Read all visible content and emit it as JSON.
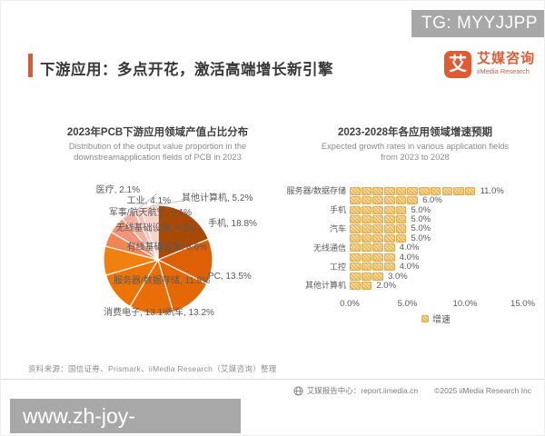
{
  "watermarks": {
    "top": "TG: MYYJJPP",
    "bottom": "www.zh-joy-bandao.com"
  },
  "header": {
    "title": "下游应用：多点开花，激活高端增长新引擎"
  },
  "logo": {
    "glyph": "艾",
    "name_cn": "艾媒咨询",
    "name_en": "iiMedia Research"
  },
  "colors": {
    "accent": "#E4572E",
    "watermark_gray": "#A8A8A8",
    "bar_square_base": "#F4CE7F",
    "bar_square_line": "#DFA64A",
    "label_text": "#595959"
  },
  "chart_data": [
    {
      "type": "pie",
      "title": "2023年PCB下游应用领域产值占比分布",
      "subtitle_lines": [
        "Distribution of the output value proportion in the",
        "downstreamapplication fields of PCB in 2023"
      ],
      "unit": "%",
      "direction": "clockwise",
      "start_angle_deg": 0,
      "slices": [
        {
          "label": "手机",
          "value": 18.8,
          "color": "#A84A06"
        },
        {
          "label": "PC",
          "value": 13.5,
          "color": "#DD6005"
        },
        {
          "label": "汽车",
          "value": 13.2,
          "color": "#E46906"
        },
        {
          "label": "消费电子",
          "value": 13.1,
          "color": "#E96E05"
        },
        {
          "label": "服务器/数据存储",
          "value": 11.8,
          "color": "#EC7404"
        },
        {
          "label": "有线基础设施",
          "value": 8.6,
          "color": "#F0800F"
        },
        {
          "label": "无线基础设施",
          "value": 4.5,
          "color": "#EF8654"
        },
        {
          "label": "军事/航天航空",
          "value": 5.1,
          "color": "#F0957A"
        },
        {
          "label": "工业",
          "value": 4.1,
          "color": "#F4B0A1"
        },
        {
          "label": "医疗",
          "value": 2.1,
          "color": "#F7C2B6"
        },
        {
          "label": "其他计算机",
          "value": 5.2,
          "color": "#F9D3CB"
        }
      ]
    },
    {
      "type": "bar",
      "title": "2023-2028年各应用领域增速预期",
      "subtitle_lines": [
        "Expected growth rates in various application fields",
        "from 2023 to 2028"
      ],
      "orientation": "horizontal",
      "unit": "%",
      "pct_per_square": 1,
      "rows": [
        {
          "label": "服务器/数据存储",
          "value": 11.0
        },
        {
          "label": "",
          "value": 6.0
        },
        {
          "label": "手机",
          "value": 5.0
        },
        {
          "label": "",
          "value": 5.0
        },
        {
          "label": "汽车",
          "value": 5.0
        },
        {
          "label": "",
          "value": 5.0
        },
        {
          "label": "无线通信",
          "value": 4.0
        },
        {
          "label": "",
          "value": 4.0
        },
        {
          "label": "工控",
          "value": 4.0
        },
        {
          "label": "",
          "value": 3.0
        },
        {
          "label": "其他计算机",
          "value": 2.0
        }
      ],
      "x_ticks": [
        {
          "label": "0.0%",
          "pct": 0
        },
        {
          "label": "5.0%",
          "pct": 5
        },
        {
          "label": "10.0%",
          "pct": 10
        },
        {
          "label": "15.0%",
          "pct": 15
        }
      ],
      "x_max_pct": 15,
      "legend": "增速"
    }
  ],
  "source_line": "资料来源：国信证券、Prismark、iiMedia Research（艾媒咨询）整理",
  "footer": {
    "icon": "globe-icon",
    "report_center": "艾媒报告中心：report.iimedia.cn",
    "copyright": "©2025  iiMedia Research  Inc"
  }
}
